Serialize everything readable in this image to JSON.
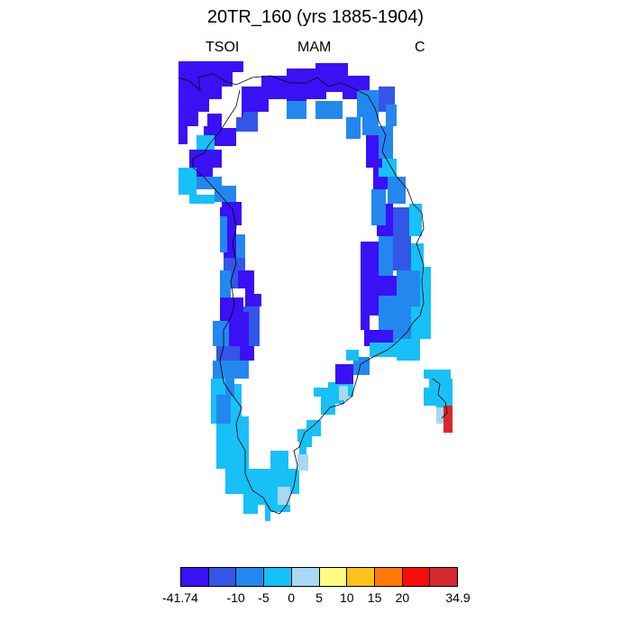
{
  "title": "20TR_160 (yrs 1885-1904)",
  "variable": "TSOI",
  "season": "MAM",
  "units": "C",
  "colors": {
    "c1": "#3a10f5",
    "c2": "#3356e8",
    "c3": "#2288f0",
    "c4": "#18c0f8",
    "c5": "#a8d8f2",
    "c6": "#fffb80",
    "c7": "#ffc21a",
    "c8": "#ff7a05",
    "c9": "#ff0a0a",
    "c10": "#d6282f"
  },
  "colorbar": {
    "colors": [
      "#3a10f5",
      "#3356e8",
      "#2288f0",
      "#18c0f8",
      "#a8d8f2",
      "#fffb80",
      "#ffc21a",
      "#ff7a05",
      "#ff0a0a",
      "#d6282f"
    ],
    "labels": [
      "-41.74",
      "-10",
      "-5",
      "0",
      "5",
      "10",
      "15",
      "20",
      "34.9"
    ],
    "label_positions": [
      0,
      2,
      3,
      4,
      5,
      6,
      7,
      8,
      10
    ]
  }
}
